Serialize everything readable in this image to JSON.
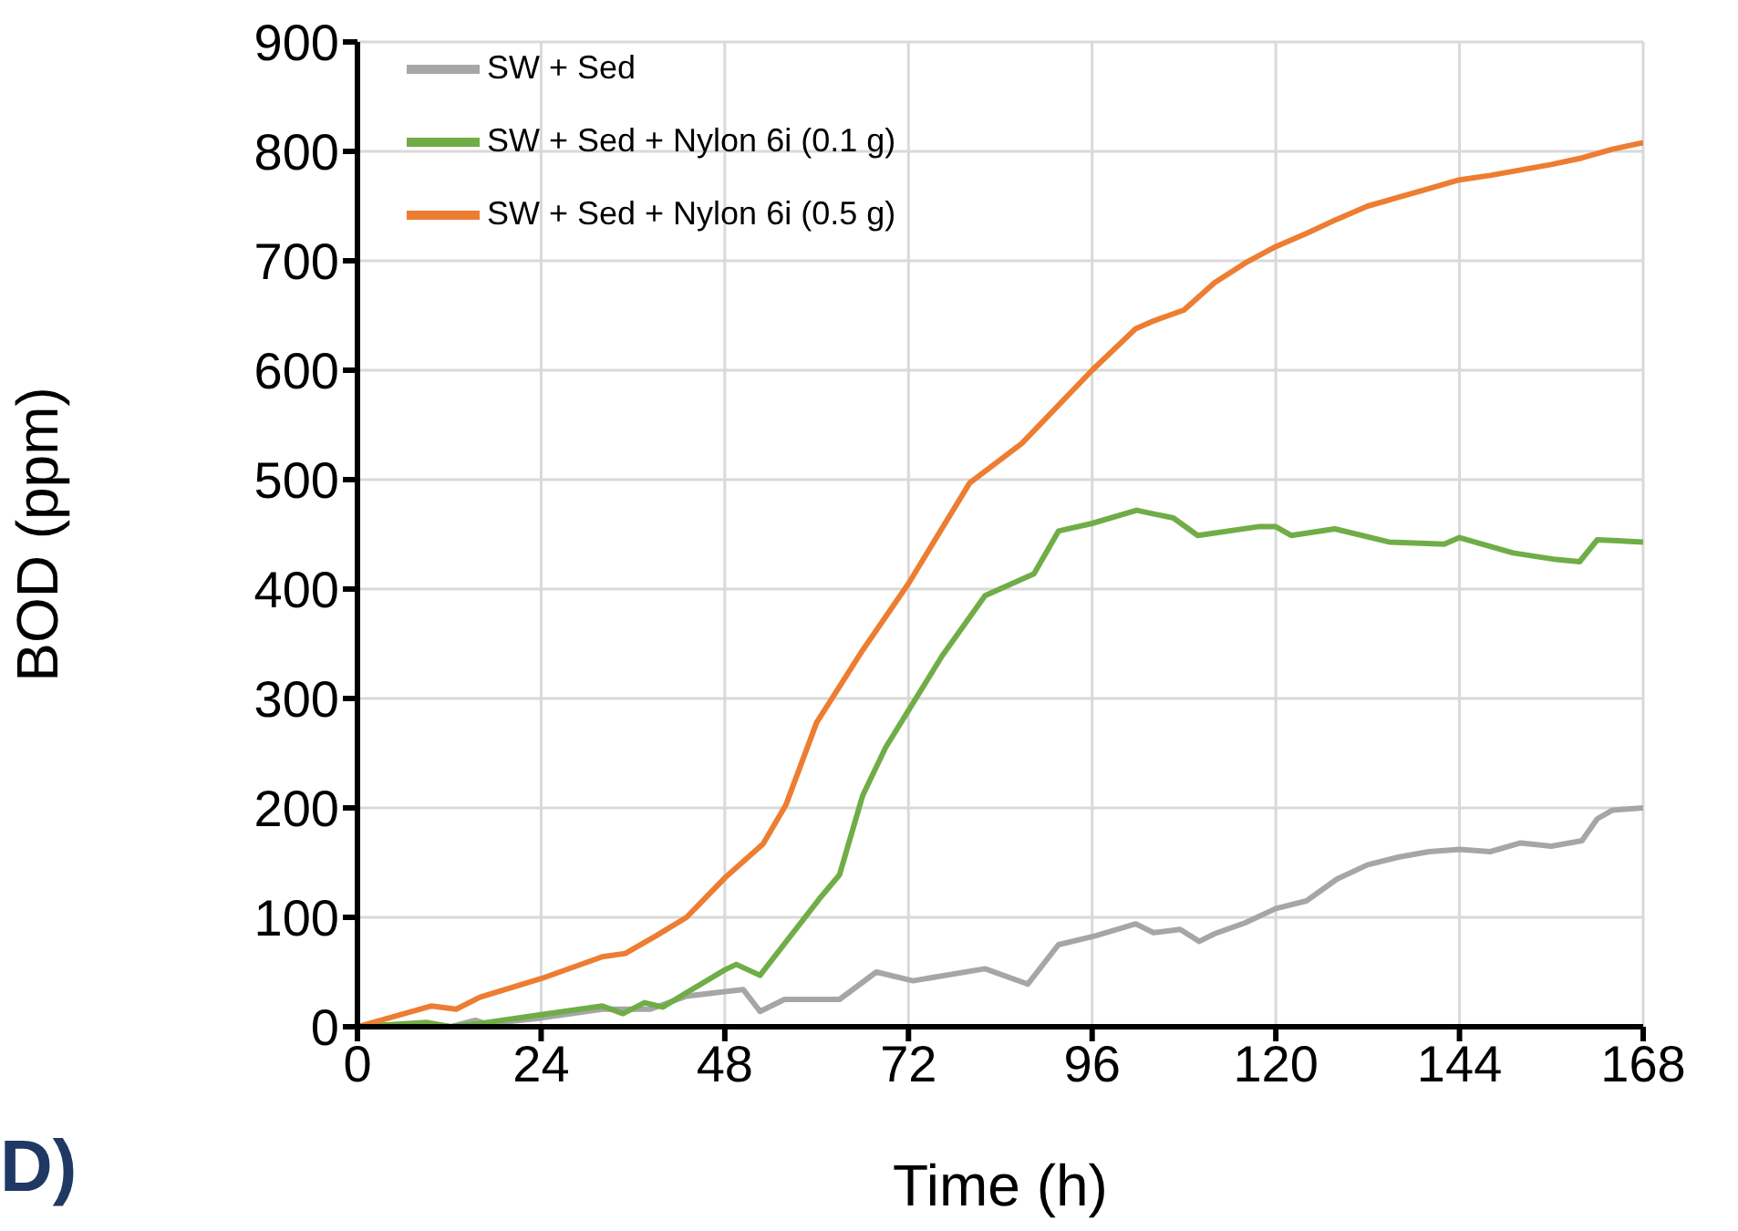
{
  "chart_data": {
    "type": "line",
    "xlabel": "Time (h)",
    "ylabel": "BOD (ppm)",
    "xlim": [
      0,
      168
    ],
    "xticks": [
      0,
      24,
      48,
      72,
      96,
      120,
      144,
      168
    ],
    "ylim": [
      0,
      900
    ],
    "yticks": [
      0,
      100,
      200,
      300,
      400,
      500,
      600,
      700,
      800,
      900
    ],
    "grid": true,
    "legend": "top left",
    "marker": "none",
    "line_style": "solid",
    "annotations": [
      "D)"
    ],
    "series": [
      {
        "name": "SW + Sed",
        "color": "#a6a6a6",
        "x": [
          0,
          9,
          12.2,
          15.4,
          17.9,
          20,
          24,
          28,
          32,
          38.3,
          43,
          48,
          50.4,
          52.6,
          55.8,
          60.6,
          63,
          67.8,
          72.6,
          82,
          87.6,
          91.6,
          96.4,
          101.7,
          104,
          107.5,
          110,
          112,
          116,
          120,
          124,
          128,
          132,
          136,
          140,
          144,
          148,
          152,
          156,
          160,
          162,
          164,
          168
        ],
        "values": [
          0,
          2,
          0,
          6,
          0,
          5,
          8,
          12,
          16,
          16,
          28,
          32,
          34,
          14,
          25,
          25,
          25,
          50,
          42,
          53,
          39,
          75,
          83,
          94,
          86,
          89,
          78,
          85,
          95,
          108,
          115,
          135,
          148,
          155,
          160,
          162,
          160,
          168,
          165,
          170,
          190,
          198,
          200
        ]
      },
      {
        "name": "SW + Sed + Nylon 6i (0.1 g)",
        "color": "#70ad47",
        "x": [
          0,
          9,
          12.2,
          16,
          24,
          32,
          34.7,
          37.5,
          39.9,
          48,
          49.5,
          52.6,
          56.6,
          60.6,
          63,
          66,
          69,
          72,
          76.4,
          82,
          88.4,
          91.6,
          96,
          101.8,
          106.6,
          109.8,
          117.7,
          120,
          122,
          127.7,
          134.8,
          142,
          144,
          151,
          156.6,
          159.7,
          162,
          168
        ],
        "values": [
          0,
          4,
          0,
          3,
          11,
          19,
          12,
          22,
          18,
          52,
          57,
          47,
          83,
          119,
          139,
          211,
          255,
          289,
          339,
          394,
          414,
          453,
          460,
          472,
          465,
          449,
          457,
          457,
          449,
          455,
          443,
          441,
          447,
          433,
          427,
          425,
          445,
          443
        ]
      },
      {
        "name": "SW + Sed + Nylon 6i (0.5 g)",
        "color": "#ed7d31",
        "x": [
          0,
          9.7,
          12.9,
          16,
          24,
          32,
          35,
          39,
          43,
          48,
          53,
          56,
          60,
          66,
          72,
          80,
          86.8,
          96,
          101.7,
          104,
          108,
          112,
          116,
          120,
          124,
          128,
          132,
          136,
          140,
          144,
          148,
          152,
          156,
          160,
          164,
          168
        ],
        "values": [
          0,
          19,
          16,
          27,
          44,
          64,
          67,
          83,
          100,
          136,
          167,
          203,
          278,
          344,
          405,
          497,
          533,
          600,
          638,
          645,
          655,
          680,
          698,
          713,
          725,
          738,
          750,
          758,
          766,
          774,
          778,
          783,
          788,
          794,
          802,
          808
        ]
      }
    ]
  }
}
